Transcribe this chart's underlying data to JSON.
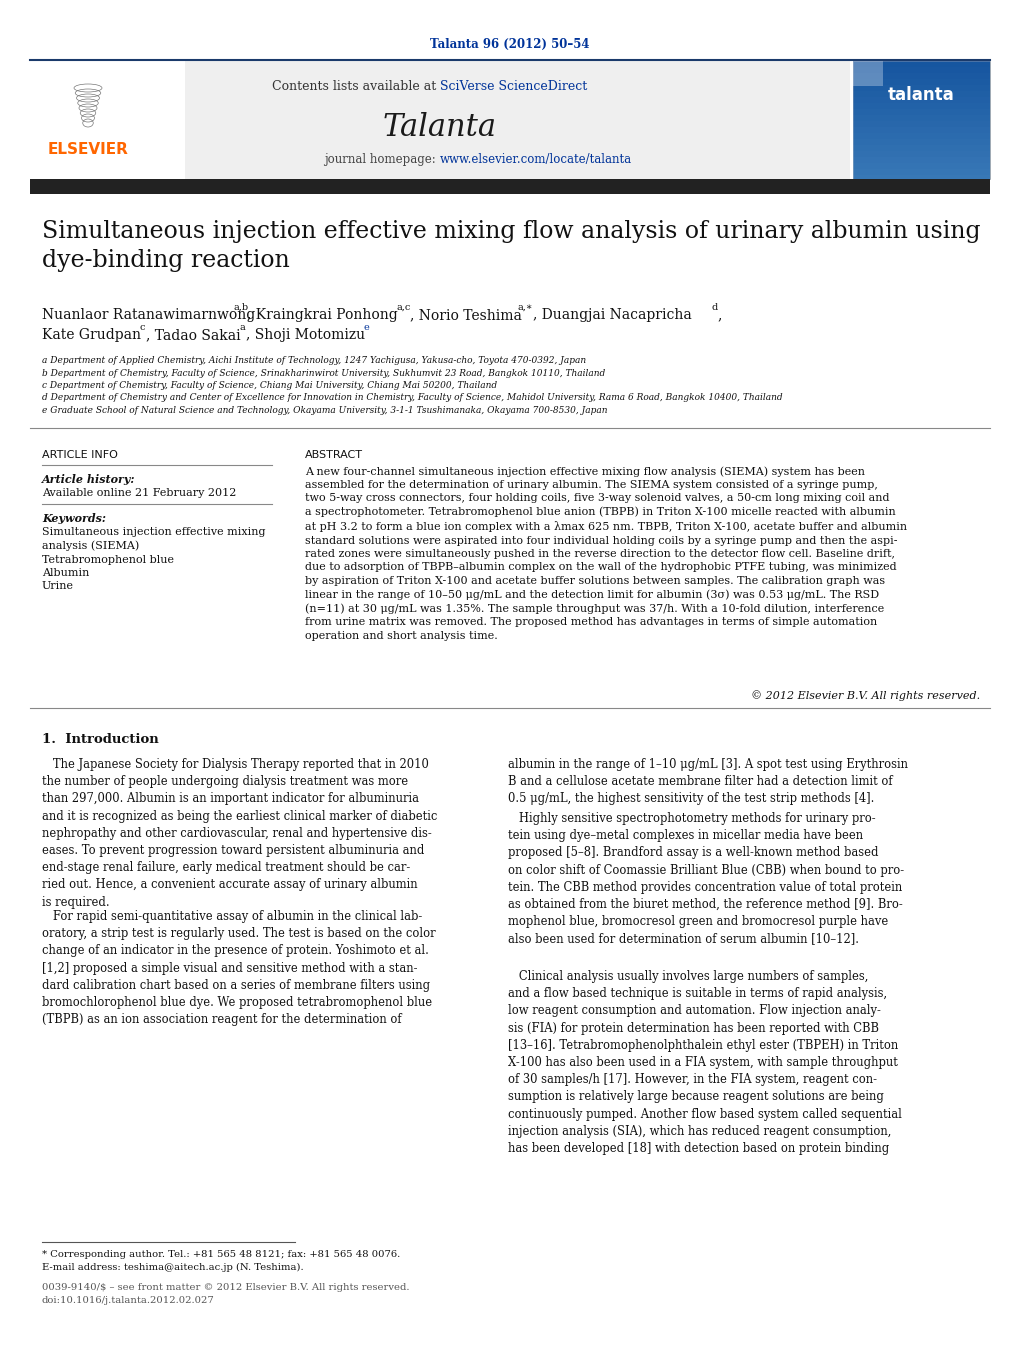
{
  "page_width": 10.2,
  "page_height": 13.51,
  "dpi": 100,
  "bg_color": "#ffffff",
  "journal_ref_color": "#003399",
  "journal_ref": "Talanta 96 (2012) 50–54",
  "sciverse_color": "#003399",
  "journal_name": "Talanta",
  "journal_url": "www.elsevier.com/locate/talanta",
  "journal_url_color": "#003399",
  "title": "Simultaneous injection effective mixing flow analysis of urinary albumin using\ndye-binding reaction",
  "affil_a": "a Department of Applied Chemistry, Aichi Institute of Technology, 1247 Yachigusa, Yakusa-cho, Toyota 470-0392, Japan",
  "affil_b": "b Department of Chemistry, Faculty of Science, Srinakharinwirot University, Sukhumvit 23 Road, Bangkok 10110, Thailand",
  "affil_c": "c Department of Chemistry, Faculty of Science, Chiang Mai University, Chiang Mai 50200, Thailand",
  "affil_d": "d Department of Chemistry and Center of Excellence for Innovation in Chemistry, Faculty of Science, Mahidol University, Rama 6 Road, Bangkok 10400, Thailand",
  "affil_e": "e Graduate School of Natural Science and Technology, Okayama University, 3-1-1 Tsushimanaka, Okayama 700-8530, Japan",
  "article_info_header": "ARTICLE INFO",
  "abstract_header": "ABSTRACT",
  "article_history_label": "Article history:",
  "available_online": "Available online 21 February 2012",
  "keywords_label": "Keywords:",
  "keyword1": "Simultaneous injection effective mixing\nanalysis (SIEMA)",
  "keyword2": "Tetrabromophenol blue",
  "keyword3": "Albumin",
  "keyword4": "Urine",
  "abstract_text": "A new four-channel simultaneous injection effective mixing flow analysis (SIEMA) system has been\nassembled for the determination of urinary albumin. The SIEMA system consisted of a syringe pump,\ntwo 5-way cross connectors, four holding coils, five 3-way solenoid valves, a 50-cm long mixing coil and\na spectrophotometer. Tetrabromophenol blue anion (TBPB) in Triton X-100 micelle reacted with albumin\nat pH 3.2 to form a blue ion complex with a λmax 625 nm. TBPB, Triton X-100, acetate buffer and albumin\nstandard solutions were aspirated into four individual holding coils by a syringe pump and then the aspi-\nrated zones were simultaneously pushed in the reverse direction to the detector flow cell. Baseline drift,\ndue to adsorption of TBPB–albumin complex on the wall of the hydrophobic PTFE tubing, was minimized\nby aspiration of Triton X-100 and acetate buffer solutions between samples. The calibration graph was\nlinear in the range of 10–50 μg/mL and the detection limit for albumin (3σ) was 0.53 μg/mL. The RSD\n(n=11) at 30 μg/mL was 1.35%. The sample throughput was 37/h. With a 10-fold dilution, interference\nfrom urine matrix was removed. The proposed method has advantages in terms of simple automation\noperation and short analysis time.",
  "copyright": "© 2012 Elsevier B.V. All rights reserved.",
  "intro_header": "1.  Introduction",
  "intro_col1_p1": "   The Japanese Society for Dialysis Therapy reported that in 2010\nthe number of people undergoing dialysis treatment was more\nthan 297,000. Albumin is an important indicator for albuminuria\nand it is recognized as being the earliest clinical marker of diabetic\nnephropathy and other cardiovascular, renal and hypertensive dis-\neases. To prevent progression toward persistent albuminuria and\nend-stage renal failure, early medical treatment should be car-\nried out. Hence, a convenient accurate assay of urinary albumin\nis required.",
  "intro_col1_p2": "   For rapid semi-quantitative assay of albumin in the clinical lab-\noratory, a strip test is regularly used. The test is based on the color\nchange of an indicator in the presence of protein. Yoshimoto et al.\n[1,2] proposed a simple visual and sensitive method with a stan-\ndard calibration chart based on a series of membrane filters using\nbromochlorophenol blue dye. We proposed tetrabromophenol blue\n(TBPB) as an ion association reagent for the determination of",
  "intro_col2_p1": "albumin in the range of 1–10 μg/mL [3]. A spot test using Erythrosin\nB and a cellulose acetate membrane filter had a detection limit of\n0.5 μg/mL, the highest sensitivity of the test strip methods [4].",
  "intro_col2_p2": "   Highly sensitive spectrophotometry methods for urinary pro-\ntein using dye–metal complexes in micellar media have been\nproposed [5–8]. Brandford assay is a well-known method based\non color shift of Coomassie Brilliant Blue (CBB) when bound to pro-\ntein. The CBB method provides concentration value of total protein\nas obtained from the biuret method, the reference method [9]. Bro-\nmophenol blue, bromocresol green and bromocresol purple have\nalso been used for determination of serum albumin [10–12].",
  "intro_col2_p3": "   Clinical analysis usually involves large numbers of samples,\nand a flow based technique is suitable in terms of rapid analysis,\nlow reagent consumption and automation. Flow injection analy-\nsis (FIA) for protein determination has been reported with CBB\n[13–16]. Tetrabromophenolphthalein ethyl ester (TBPEH) in Triton\nX-100 has also been used in a FIA system, with sample throughput\nof 30 samples/h [17]. However, in the FIA system, reagent con-\nsumption is relatively large because reagent solutions are being\ncontinuously pumped. Another flow based system called sequential\ninjection analysis (SIA), which has reduced reagent consumption,\nhas been developed [18] with detection based on protein binding",
  "footnote_star": "* Corresponding author. Tel.: +81 565 48 8121; fax: +81 565 48 0076.",
  "footnote_email": "E-mail address: teshima@aitech.ac.jp (N. Teshima).",
  "footer_issn": "0039-9140/$ – see front matter © 2012 Elsevier B.V. All rights reserved.",
  "footer_doi": "doi:10.1016/j.talanta.2012.02.027",
  "elsevier_color": "#FF6600",
  "link_color": "#003399"
}
